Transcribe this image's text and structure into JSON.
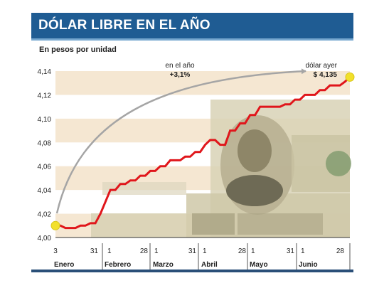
{
  "header": {
    "title": "DÓLAR LIBRE EN EL AÑO",
    "subtitle": "En pesos por unidad"
  },
  "colors": {
    "title_bar": "#1f5c93",
    "line": "#e0161b",
    "band": "#f5e7d2",
    "point": "#f2e02a",
    "month_bar": "#2a4f78"
  },
  "chart_data": {
    "type": "line",
    "title": "DÓLAR LIBRE EN EL AÑO",
    "ylabel": "En pesos por unidad",
    "ylim": [
      4.0,
      4.14
    ],
    "y_ticks": [
      "4,14",
      "4,12",
      "4,10",
      "4,08",
      "4,06",
      "4,04",
      "4,02",
      "4,00"
    ],
    "grid": "horizontal bands",
    "x_labels": [
      "3",
      "31",
      "1",
      "28",
      "1",
      "31",
      "1",
      "28",
      "1",
      "31",
      "1",
      "28"
    ],
    "months": [
      "Enero",
      "Febrero",
      "Marzo",
      "Abril",
      "Mayo",
      "Junio"
    ],
    "series": [
      {
        "values": [
          4.01,
          4.01,
          4.008,
          4.008,
          4.008,
          4.01,
          4.01,
          4.012,
          4.012,
          4.02,
          4.03,
          4.04,
          4.04,
          4.045,
          4.045,
          4.048,
          4.048,
          4.052,
          4.052,
          4.056,
          4.056,
          4.06,
          4.06,
          4.065,
          4.065,
          4.065,
          4.068,
          4.068,
          4.072,
          4.072,
          4.078,
          4.082,
          4.082,
          4.078,
          4.078,
          4.09,
          4.09,
          4.096,
          4.096,
          4.103,
          4.103,
          4.11,
          4.11,
          4.11,
          4.11,
          4.11,
          4.112,
          4.112,
          4.116,
          4.116,
          4.12,
          4.12,
          4.12,
          4.124,
          4.124,
          4.128,
          4.128,
          4.128,
          4.131,
          4.135
        ]
      }
    ],
    "annotations": [
      {
        "label": "en el año",
        "value": "+3,1%"
      },
      {
        "label": "dólar ayer",
        "value": "$ 4,135"
      }
    ]
  }
}
